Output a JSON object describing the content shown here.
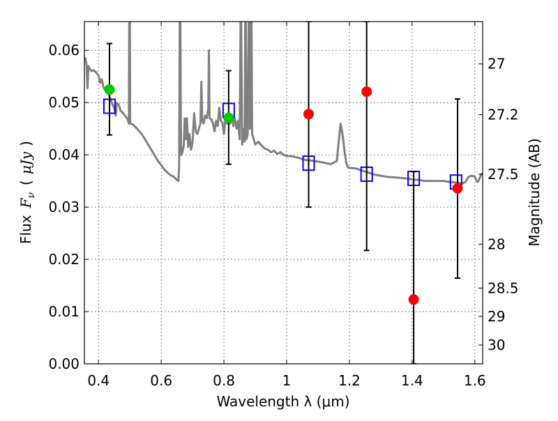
{
  "chart_data": {
    "type": "scatter",
    "xlabel": "Wavelength  λ (μm)",
    "ylabel_left": "Flux  F_ν  ( μJy )",
    "ylabel_left_parts": {
      "prefix": "Flux",
      "symbol": "F",
      "sub": "ν",
      "paren_open": "(",
      "unit": "μJy",
      "paren_close": ")"
    },
    "ylabel_right": "Magnitude (AB)",
    "xlim": [
      0.355,
      1.625
    ],
    "ylim": [
      0.0,
      0.0655
    ],
    "grid": true,
    "x_ticks": [
      0.4,
      0.6,
      0.8,
      1.0,
      1.2,
      1.4,
      1.6
    ],
    "x_tick_labels": [
      "0.4",
      "0.6",
      "0.8",
      "1",
      "1.2",
      "1.4",
      "1.6"
    ],
    "y_ticks": [
      0.0,
      0.01,
      0.02,
      0.03,
      0.04,
      0.05,
      0.06
    ],
    "y_tick_labels": [
      "0.00",
      "0.01",
      "0.02",
      "0.03",
      "0.04",
      "0.05",
      "0.06"
    ],
    "right_ticks": [
      {
        "label": "27",
        "flux": 0.0574
      },
      {
        "label": "27.2",
        "flux": 0.0477
      },
      {
        "label": "27.5",
        "flux": 0.0363
      },
      {
        "label": "28",
        "flux": 0.0229
      },
      {
        "label": "28.5",
        "flux": 0.0145
      },
      {
        "label": "29",
        "flux": 0.0091
      },
      {
        "label": "30",
        "flux": 0.0036
      }
    ],
    "series": [
      {
        "kind": "model",
        "color": "#808080",
        "points": [
          [
            0.355,
            0.0578
          ],
          [
            0.358,
            0.0585
          ],
          [
            0.362,
            0.0572
          ],
          [
            0.365,
            0.0528
          ],
          [
            0.368,
            0.057
          ],
          [
            0.372,
            0.0565
          ],
          [
            0.378,
            0.056
          ],
          [
            0.385,
            0.0562
          ],
          [
            0.392,
            0.0558
          ],
          [
            0.4,
            0.0552
          ],
          [
            0.405,
            0.0538
          ],
          [
            0.41,
            0.0545
          ],
          [
            0.415,
            0.0532
          ],
          [
            0.42,
            0.0525
          ],
          [
            0.428,
            0.052
          ],
          [
            0.435,
            0.0512
          ],
          [
            0.442,
            0.05
          ],
          [
            0.45,
            0.049
          ],
          [
            0.455,
            0.0475
          ],
          [
            0.458,
            0.05
          ],
          [
            0.465,
            0.0495
          ],
          [
            0.47,
            0.0485
          ],
          [
            0.478,
            0.048
          ],
          [
            0.485,
            0.0475
          ],
          [
            0.493,
            0.0468
          ],
          [
            0.497,
            0.046
          ],
          [
            0.498,
            0.066
          ],
          [
            0.5,
            0.066
          ],
          [
            0.501,
            0.046
          ],
          [
            0.51,
            0.0458
          ],
          [
            0.52,
            0.0452
          ],
          [
            0.53,
            0.0445
          ],
          [
            0.54,
            0.0438
          ],
          [
            0.55,
            0.0428
          ],
          [
            0.56,
            0.0418
          ],
          [
            0.57,
            0.0408
          ],
          [
            0.58,
            0.0398
          ],
          [
            0.59,
            0.0388
          ],
          [
            0.6,
            0.038
          ],
          [
            0.61,
            0.0372
          ],
          [
            0.62,
            0.0366
          ],
          [
            0.63,
            0.0361
          ],
          [
            0.64,
            0.0358
          ],
          [
            0.65,
            0.0352
          ],
          [
            0.655,
            0.035
          ],
          [
            0.657,
            0.038
          ],
          [
            0.659,
            0.0655
          ],
          [
            0.661,
            0.0655
          ],
          [
            0.663,
            0.04
          ],
          [
            0.668,
            0.0405
          ],
          [
            0.672,
            0.042
          ],
          [
            0.675,
            0.047
          ],
          [
            0.678,
            0.043
          ],
          [
            0.682,
            0.047
          ],
          [
            0.686,
            0.0415
          ],
          [
            0.69,
            0.044
          ],
          [
            0.695,
            0.041
          ],
          [
            0.7,
            0.0425
          ],
          [
            0.705,
            0.048
          ],
          [
            0.71,
            0.0445
          ],
          [
            0.715,
            0.044
          ],
          [
            0.72,
            0.045
          ],
          [
            0.725,
            0.046
          ],
          [
            0.728,
            0.054
          ],
          [
            0.731,
            0.0465
          ],
          [
            0.735,
            0.046
          ],
          [
            0.74,
            0.0475
          ],
          [
            0.745,
            0.047
          ],
          [
            0.75,
            0.0488
          ],
          [
            0.752,
            0.06
          ],
          [
            0.754,
            0.047
          ],
          [
            0.76,
            0.0468
          ],
          [
            0.765,
            0.046
          ],
          [
            0.77,
            0.0445
          ],
          [
            0.775,
            0.0465
          ],
          [
            0.78,
            0.0455
          ],
          [
            0.785,
            0.049
          ],
          [
            0.79,
            0.0465
          ],
          [
            0.795,
            0.0462
          ],
          [
            0.8,
            0.044
          ],
          [
            0.805,
            0.047
          ],
          [
            0.81,
            0.046
          ],
          [
            0.815,
            0.048
          ],
          [
            0.82,
            0.046
          ],
          [
            0.825,
            0.0475
          ],
          [
            0.83,
            0.0455
          ],
          [
            0.835,
            0.047
          ],
          [
            0.84,
            0.045
          ],
          [
            0.845,
            0.0465
          ],
          [
            0.85,
            0.043
          ],
          [
            0.853,
            0.0655
          ],
          [
            0.855,
            0.0655
          ],
          [
            0.858,
            0.042
          ],
          [
            0.862,
            0.045
          ],
          [
            0.866,
            0.0425
          ],
          [
            0.868,
            0.0655
          ],
          [
            0.87,
            0.0655
          ],
          [
            0.872,
            0.043
          ],
          [
            0.876,
            0.044
          ],
          [
            0.879,
            0.0655
          ],
          [
            0.881,
            0.0655
          ],
          [
            0.883,
            0.045
          ],
          [
            0.886,
            0.0655
          ],
          [
            0.888,
            0.0655
          ],
          [
            0.89,
            0.044
          ],
          [
            0.9,
            0.042
          ],
          [
            0.91,
            0.0425
          ],
          [
            0.92,
            0.0418
          ],
          [
            0.93,
            0.0412
          ],
          [
            0.94,
            0.041
          ],
          [
            0.95,
            0.0405
          ],
          [
            0.96,
            0.0408
          ],
          [
            0.97,
            0.0402
          ],
          [
            0.98,
            0.0405
          ],
          [
            0.99,
            0.04
          ],
          [
            1.0,
            0.0398
          ],
          [
            1.02,
            0.0397
          ],
          [
            1.04,
            0.0394
          ],
          [
            1.06,
            0.039
          ],
          [
            1.08,
            0.0389
          ],
          [
            1.1,
            0.0387
          ],
          [
            1.12,
            0.0385
          ],
          [
            1.14,
            0.0382
          ],
          [
            1.16,
            0.0388
          ],
          [
            1.165,
            0.042
          ],
          [
            1.172,
            0.046
          ],
          [
            1.178,
            0.044
          ],
          [
            1.185,
            0.0405
          ],
          [
            1.19,
            0.0385
          ],
          [
            1.195,
            0.0376
          ],
          [
            1.2,
            0.0375
          ],
          [
            1.22,
            0.0374
          ],
          [
            1.24,
            0.037
          ],
          [
            1.26,
            0.0366
          ],
          [
            1.28,
            0.0362
          ],
          [
            1.3,
            0.036
          ],
          [
            1.32,
            0.0358
          ],
          [
            1.34,
            0.0357
          ],
          [
            1.36,
            0.0356
          ],
          [
            1.38,
            0.0355
          ],
          [
            1.4,
            0.0353
          ],
          [
            1.42,
            0.0352
          ],
          [
            1.44,
            0.035
          ],
          [
            1.46,
            0.035
          ],
          [
            1.48,
            0.035
          ],
          [
            1.5,
            0.035
          ],
          [
            1.52,
            0.0348
          ],
          [
            1.54,
            0.0347
          ],
          [
            1.56,
            0.0345
          ],
          [
            1.57,
            0.0348
          ],
          [
            1.58,
            0.0358
          ],
          [
            1.59,
            0.036
          ],
          [
            1.6,
            0.0358
          ],
          [
            1.605,
            0.035
          ],
          [
            1.61,
            0.0348
          ],
          [
            1.62,
            0.0362
          ],
          [
            1.625,
            0.0365
          ]
        ]
      },
      {
        "kind": "model_photometry",
        "marker": "open-square",
        "color": "#0000ff",
        "points": [
          [
            0.435,
            0.0493
          ],
          [
            0.815,
            0.0485
          ],
          [
            1.07,
            0.0384
          ],
          [
            1.255,
            0.0363
          ],
          [
            1.405,
            0.0355
          ],
          [
            1.54,
            0.0348
          ]
        ]
      },
      {
        "kind": "observed",
        "marker": "circle",
        "color": "#00cc00",
        "points": [
          {
            "x": 0.435,
            "y": 0.0525,
            "err_low": 0.0438,
            "err_high": 0.0613
          },
          {
            "x": 0.815,
            "y": 0.0471,
            "err_low": 0.0382,
            "err_high": 0.0561
          }
        ]
      },
      {
        "kind": "observed",
        "marker": "circle",
        "color": "#ff0000",
        "points": [
          {
            "x": 1.07,
            "y": 0.0478,
            "err_low": 0.03,
            "err_high": 0.0655
          },
          {
            "x": 1.255,
            "y": 0.0521,
            "err_low": 0.0217,
            "err_high": 0.0655
          },
          {
            "x": 1.405,
            "y": 0.0123,
            "err_low": 0.0,
            "err_high": 0.0368
          },
          {
            "x": 1.545,
            "y": 0.0336,
            "err_low": 0.0164,
            "err_high": 0.0507
          }
        ]
      }
    ]
  }
}
